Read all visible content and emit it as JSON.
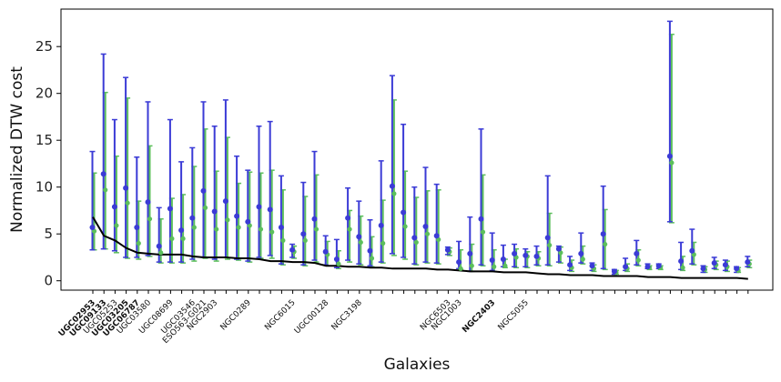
{
  "chart_data": {
    "type": "scatter",
    "xlabel": "Galaxies",
    "ylabel": "Normalized DTW cost",
    "ylim": [
      -1,
      29
    ],
    "yticks": [
      0,
      5,
      10,
      15,
      20,
      25
    ],
    "colors": {
      "series_a": "#3b3bd6",
      "series_b": "#5cbf5c",
      "baseline": "#000000"
    },
    "series": [
      {
        "name": "blue",
        "values": [
          5.7,
          11.4,
          7.9,
          9.9,
          5.7,
          8.4,
          3.7,
          7.7,
          5.4,
          6.7,
          9.6,
          7.4,
          8.5,
          6.9,
          6.3,
          7.9,
          7.6,
          5.7,
          3.3,
          5.0,
          6.6,
          3.1,
          2.3,
          6.7,
          4.7,
          3.2,
          5.9,
          10.1,
          7.3,
          4.6,
          5.8,
          4.8,
          3.3,
          2.0,
          2.9,
          6.6,
          2.2,
          2.3,
          2.9,
          2.7,
          2.6,
          4.6,
          3.4,
          1.7,
          2.9,
          1.6,
          5.0,
          1.0,
          1.5,
          2.9,
          1.5,
          1.6,
          13.3,
          2.1,
          3.2,
          1.3,
          1.9,
          1.7,
          1.3,
          2.0
        ],
        "lower": [
          3.3,
          3.4,
          3.2,
          2.5,
          2.5,
          2.7,
          2.0,
          2.0,
          2.0,
          2.3,
          2.5,
          2.3,
          2.5,
          2.3,
          2.1,
          2.5,
          2.7,
          1.8,
          2.5,
          1.7,
          2.2,
          1.7,
          1.4,
          2.2,
          1.8,
          1.6,
          2.0,
          2.9,
          2.5,
          1.8,
          2.0,
          1.9,
          2.8,
          1.3,
          1.0,
          1.7,
          1.1,
          1.5,
          1.5,
          1.5,
          1.7,
          1.7,
          2.0,
          1.1,
          1.9,
          1.1,
          1.3,
          0.7,
          1.1,
          1.7,
          1.3,
          1.3,
          6.3,
          1.2,
          1.8,
          0.9,
          1.3,
          1.1,
          0.9,
          1.5
        ],
        "upper": [
          13.8,
          24.2,
          17.2,
          21.7,
          13.2,
          19.1,
          7.8,
          17.2,
          12.7,
          14.2,
          19.1,
          16.5,
          19.3,
          13.3,
          11.8,
          16.5,
          17.0,
          11.2,
          3.9,
          10.5,
          13.8,
          4.8,
          4.4,
          9.9,
          8.5,
          6.5,
          12.8,
          21.9,
          16.7,
          10.0,
          12.1,
          10.3,
          3.6,
          4.2,
          6.8,
          16.2,
          5.1,
          3.8,
          3.9,
          3.4,
          3.7,
          11.2,
          3.7,
          2.6,
          5.1,
          1.9,
          10.1,
          1.2,
          2.4,
          4.3,
          1.8,
          1.8,
          27.7,
          4.1,
          5.5,
          1.6,
          2.5,
          2.2,
          1.5,
          2.6
        ]
      },
      {
        "name": "green",
        "values": [
          5.3,
          9.7,
          5.9,
          8.3,
          4.0,
          6.6,
          3.0,
          4.5,
          4.5,
          5.7,
          7.8,
          5.5,
          6.5,
          5.7,
          5.9,
          5.5,
          5.2,
          4.3,
          3.1,
          4.3,
          5.5,
          2.8,
          1.8,
          5.5,
          4.1,
          2.4,
          4.0,
          9.3,
          5.8,
          4.1,
          5.0,
          4.4,
          3.1,
          1.3,
          1.6,
          5.2,
          1.5,
          1.6,
          2.5,
          2.6,
          2.4,
          3.8,
          3.0,
          1.4,
          2.3,
          1.3,
          3.9,
          0.9,
          1.3,
          2.2,
          1.4,
          1.4,
          12.6,
          1.4,
          2.8,
          1.2,
          1.7,
          1.5,
          1.1,
          1.8
        ],
        "lower": [
          3.3,
          3.4,
          3.0,
          2.4,
          2.3,
          2.6,
          1.9,
          1.9,
          1.9,
          2.1,
          2.4,
          2.1,
          2.3,
          2.2,
          2.0,
          2.4,
          2.4,
          1.7,
          2.4,
          1.6,
          2.0,
          1.6,
          1.3,
          2.0,
          1.7,
          1.5,
          1.9,
          2.7,
          2.3,
          1.7,
          1.9,
          1.8,
          2.7,
          1.2,
          1.0,
          1.6,
          1.0,
          1.4,
          1.4,
          1.4,
          1.6,
          1.6,
          1.9,
          1.0,
          1.8,
          1.0,
          1.2,
          0.7,
          1.0,
          1.6,
          1.2,
          1.2,
          6.2,
          1.1,
          1.7,
          0.9,
          1.2,
          1.0,
          0.9,
          1.4
        ],
        "upper": [
          11.5,
          20.1,
          13.3,
          19.5,
          8.5,
          14.4,
          6.6,
          8.8,
          9.2,
          12.2,
          16.2,
          11.7,
          15.3,
          10.4,
          11.6,
          11.5,
          11.8,
          9.7,
          3.7,
          9.0,
          11.3,
          4.2,
          3.2,
          7.5,
          6.9,
          4.7,
          8.6,
          19.3,
          11.7,
          8.9,
          9.6,
          9.7,
          3.5,
          3.3,
          3.9,
          11.3,
          3.3,
          2.3,
          3.4,
          3.1,
          3.1,
          7.2,
          3.6,
          2.2,
          3.7,
          1.7,
          7.6,
          1.1,
          1.8,
          3.3,
          1.6,
          1.6,
          26.3,
          2.6,
          4.1,
          1.5,
          2.1,
          2.1,
          1.4,
          2.2
        ]
      },
      {
        "name": "baseline",
        "values": [
          6.8,
          4.8,
          4.3,
          3.5,
          3.0,
          2.9,
          2.8,
          2.8,
          2.8,
          2.6,
          2.5,
          2.5,
          2.5,
          2.4,
          2.4,
          2.3,
          2.1,
          2.1,
          2.0,
          2.0,
          1.9,
          1.6,
          1.6,
          1.5,
          1.5,
          1.4,
          1.4,
          1.3,
          1.3,
          1.3,
          1.3,
          1.2,
          1.2,
          1.1,
          1.0,
          1.0,
          1.0,
          0.9,
          0.9,
          0.9,
          0.8,
          0.7,
          0.7,
          0.6,
          0.6,
          0.6,
          0.5,
          0.5,
          0.5,
          0.5,
          0.4,
          0.4,
          0.4,
          0.3,
          0.3,
          0.3,
          0.3,
          0.3,
          0.3,
          0.2
        ]
      }
    ],
    "tick_labels": [
      {
        "index": 0,
        "text": "UGC02953",
        "bold": true
      },
      {
        "index": 1,
        "text": "UGC09133",
        "bold": true
      },
      {
        "index": 2,
        "text": "UGC05253",
        "bold": false
      },
      {
        "index": 3,
        "text": "UGC03205",
        "bold": true
      },
      {
        "index": 4,
        "text": "UGC06787",
        "bold": true
      },
      {
        "index": 5,
        "text": "UGC03580",
        "bold": false
      },
      {
        "index": 7,
        "text": "UGC08699",
        "bold": false
      },
      {
        "index": 9,
        "text": "UGC03546",
        "bold": false
      },
      {
        "index": 10,
        "text": "ESO563-G021",
        "bold": false
      },
      {
        "index": 11,
        "text": "NGC2903",
        "bold": false
      },
      {
        "index": 14,
        "text": "NGC0289",
        "bold": false
      },
      {
        "index": 18,
        "text": "NGC6015",
        "bold": false
      },
      {
        "index": 21,
        "text": "UGC00128",
        "bold": false
      },
      {
        "index": 24,
        "text": "NGC3198",
        "bold": false
      },
      {
        "index": 32,
        "text": "NGC6503",
        "bold": false
      },
      {
        "index": 33,
        "text": "NGC1003",
        "bold": false
      },
      {
        "index": 36,
        "text": "NGC2403",
        "bold": true
      },
      {
        "index": 39,
        "text": "NGC5055",
        "bold": false
      }
    ]
  }
}
